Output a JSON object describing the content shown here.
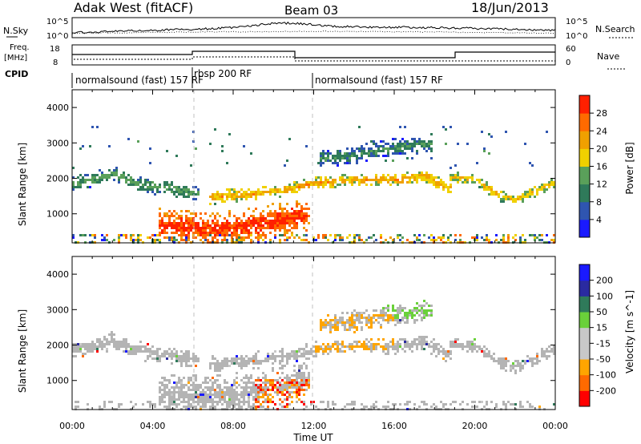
{
  "header": {
    "station": "Adak West (fitACF)",
    "beam": "Beam 03",
    "date": "18/Jun/2013"
  },
  "strip_labels": {
    "nsky": "N.Sky",
    "nsky_top": "10^5",
    "nsky_bottom": "10^0",
    "nsearch": "N.Search",
    "nsearch_top": "10^5",
    "nsearch_bottom": "10^0",
    "freq_line1": "Freq.",
    "freq_line2": "[MHz]",
    "freq_top": "18",
    "freq_bottom": "8",
    "nave": "Nave",
    "nave_top": "60",
    "nave_bottom": "0",
    "cpid": "CPID"
  },
  "cpid_segments": [
    {
      "label": "normalsound (fast) 157 RF",
      "start_hour": 0,
      "end_hour": 6
    },
    {
      "label": "rbsp 200 RF",
      "start_hour": 6,
      "end_hour": 12
    },
    {
      "label": "normalsound (fast) 157 RF",
      "start_hour": 12,
      "end_hour": 24
    }
  ],
  "colors": {
    "power_scale": [
      "#1a1aff",
      "#2f55b0",
      "#2f7a5a",
      "#5aa05a",
      "#f0d000",
      "#f0a000",
      "#ff6a00",
      "#ff2000"
    ],
    "velocity_scale": [
      "#ff0000",
      "#ff6a00",
      "#ffa500",
      "#c8c8c8",
      "#c8c8c8",
      "#6ad13a",
      "#2f7a5a",
      "#2a2aa0",
      "#1a1aff"
    ],
    "ground_scatter": "#b4b4b4"
  },
  "chart_data": [
    {
      "type": "heatmap",
      "name": "power-panel",
      "ylabel": "Slant Range [km]",
      "yticks": [
        "1000",
        "2000",
        "3000",
        "4000"
      ],
      "ylim": [
        180,
        4500
      ],
      "xlim": [
        0,
        24
      ],
      "colorbar_label": "Power [dB]",
      "colorbar_ticks": [
        "4",
        "8",
        "12",
        "16",
        "20",
        "24",
        "28"
      ],
      "colorbar_range": [
        0,
        32
      ],
      "bands": [
        {
          "name": "near-range-strong",
          "points": [
            [
              4.5,
              700
            ],
            [
              6,
              650
            ],
            [
              7,
              600
            ],
            [
              9,
              700
            ],
            [
              10.5,
              900
            ],
            [
              11.5,
              1000
            ]
          ],
          "width": 500,
          "value": 30
        },
        {
          "name": "mid-band-early",
          "points": [
            [
              0,
              1900
            ],
            [
              1,
              2000
            ],
            [
              2,
              2150
            ],
            [
              3,
              1900
            ],
            [
              4,
              1800
            ],
            [
              5,
              1750
            ],
            [
              6,
              1600
            ]
          ],
          "width": 220,
          "value": 14
        },
        {
          "name": "main-band",
          "points": [
            [
              7,
              1500
            ],
            [
              9,
              1600
            ],
            [
              11,
              1750
            ],
            [
              12,
              1900
            ],
            [
              14,
              2000
            ],
            [
              16,
              2000
            ],
            [
              17.5,
              2100
            ],
            [
              18.5,
              1800
            ]
          ],
          "width": 200,
          "value": 22
        },
        {
          "name": "late-band",
          "points": [
            [
              19,
              2050
            ],
            [
              20,
              2000
            ],
            [
              21,
              1600
            ],
            [
              22,
              1400
            ],
            [
              23,
              1700
            ],
            [
              24,
              1900
            ]
          ],
          "width": 180,
          "value": 20
        },
        {
          "name": "upper-band",
          "points": [
            [
              12.5,
              2600
            ],
            [
              14,
              2700
            ],
            [
              16,
              2900
            ],
            [
              17.5,
              3000
            ]
          ],
          "width": 260,
          "value": 12
        }
      ]
    },
    {
      "type": "heatmap",
      "name": "velocity-panel",
      "ylabel": "Slant Range [km]",
      "xlabel": "Time UT",
      "xticks": [
        "00:00",
        "04:00",
        "08:00",
        "12:00",
        "16:00",
        "20:00",
        "00:00"
      ],
      "yticks": [
        "1000",
        "2000",
        "3000",
        "4000"
      ],
      "ylim": [
        180,
        4500
      ],
      "xlim": [
        0,
        24
      ],
      "colorbar_label": "Velocity [m s^-1]",
      "colorbar_ticks": [
        "-200",
        "-100",
        "-50",
        "-15",
        "15",
        "50",
        "100",
        "200"
      ],
      "colorbar_range": [
        -250,
        250
      ]
    }
  ]
}
